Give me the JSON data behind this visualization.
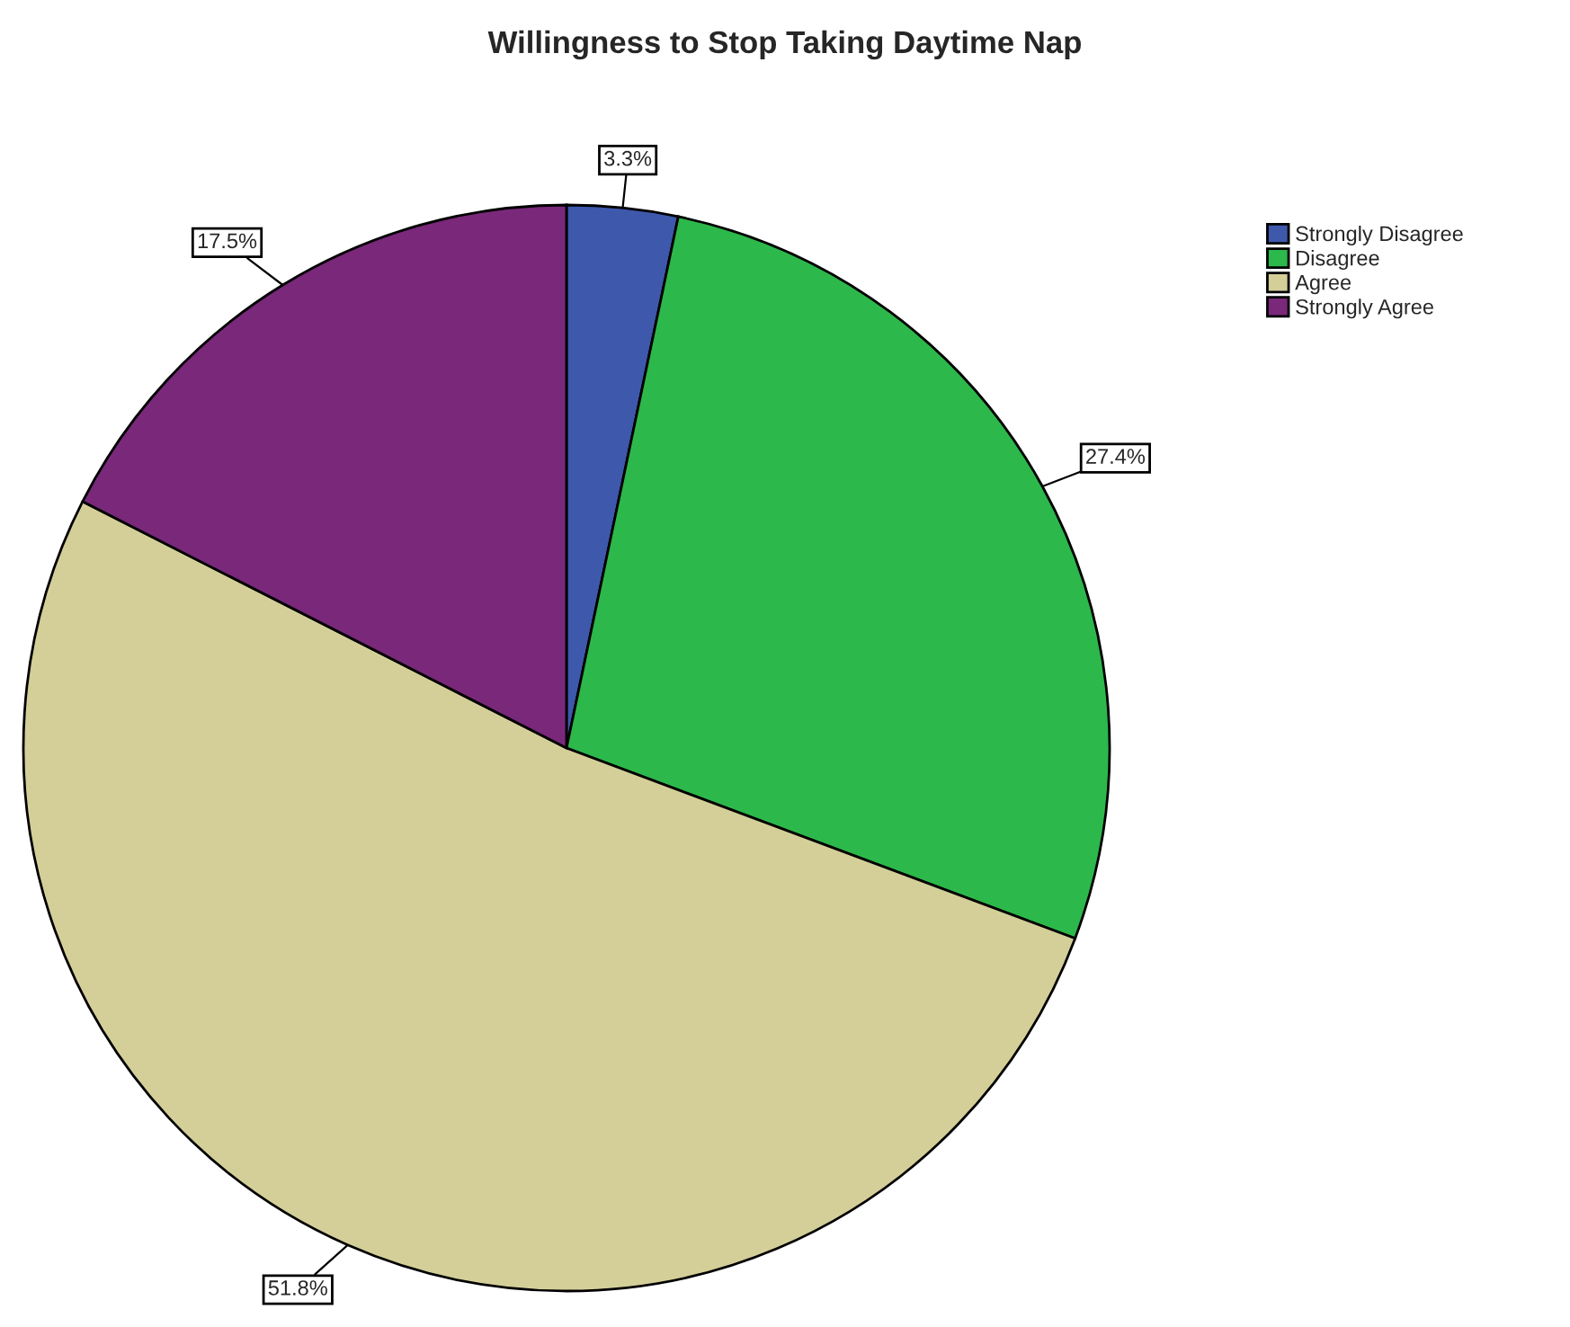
{
  "chart_data": {
    "type": "pie",
    "title": "Willingness to Stop Taking Daytime Nap",
    "categories": [
      "Strongly Disagree",
      "Disagree",
      "Agree",
      "Strongly Agree"
    ],
    "values": [
      3.3,
      27.4,
      51.8,
      17.5
    ],
    "colors": [
      "#3e58ac",
      "#2db84b",
      "#d4cf98",
      "#79287a"
    ],
    "value_labels": [
      "3.3%",
      "27.4%",
      "51.8%",
      "17.5%"
    ],
    "legend": "top right"
  }
}
